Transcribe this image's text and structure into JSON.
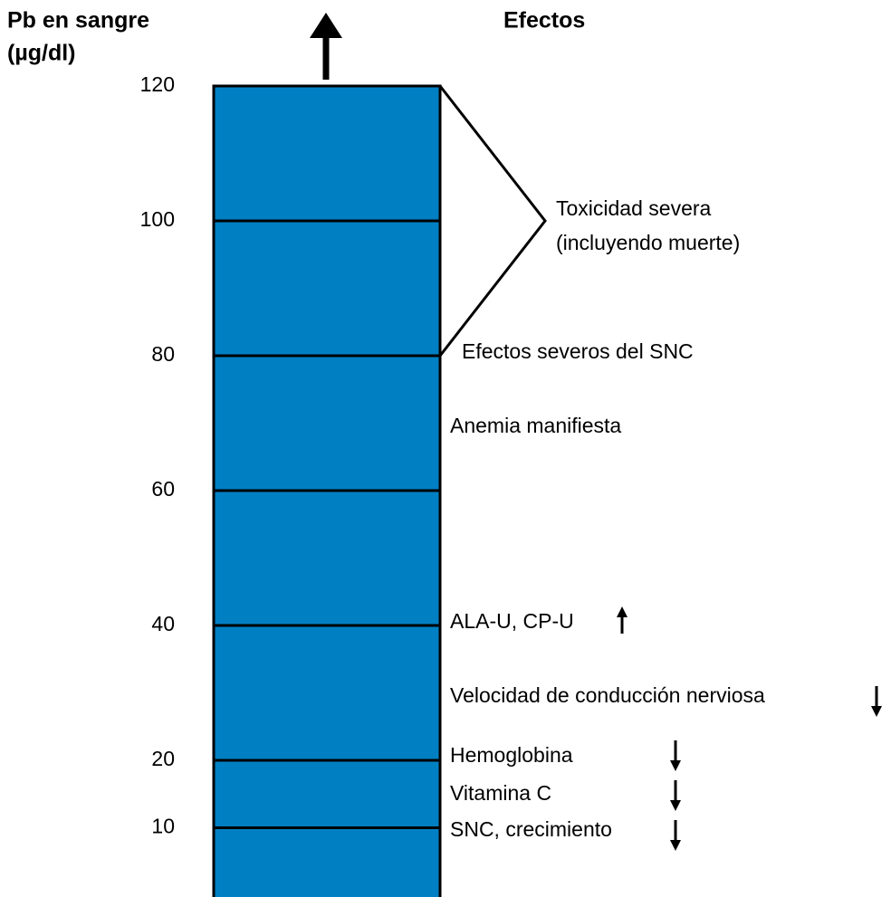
{
  "axis_label": [
    "Pb en sangre",
    "(µg/dl)"
  ],
  "effects_title": "Efectos",
  "levels": [
    120,
    100,
    80,
    60,
    40,
    20,
    10
  ],
  "ylim": [
    0,
    120
  ],
  "effects": [
    "Toxicidad severa",
    "(incluyendo muerte)",
    "Efectos severos del SNC",
    "Anemia manifiesta",
    "ALA-U, CP-U",
    "Velocidad de conducción nerviosa",
    "Hemoglobina",
    "Vitamina C",
    "SNC, crecimiento"
  ]
}
